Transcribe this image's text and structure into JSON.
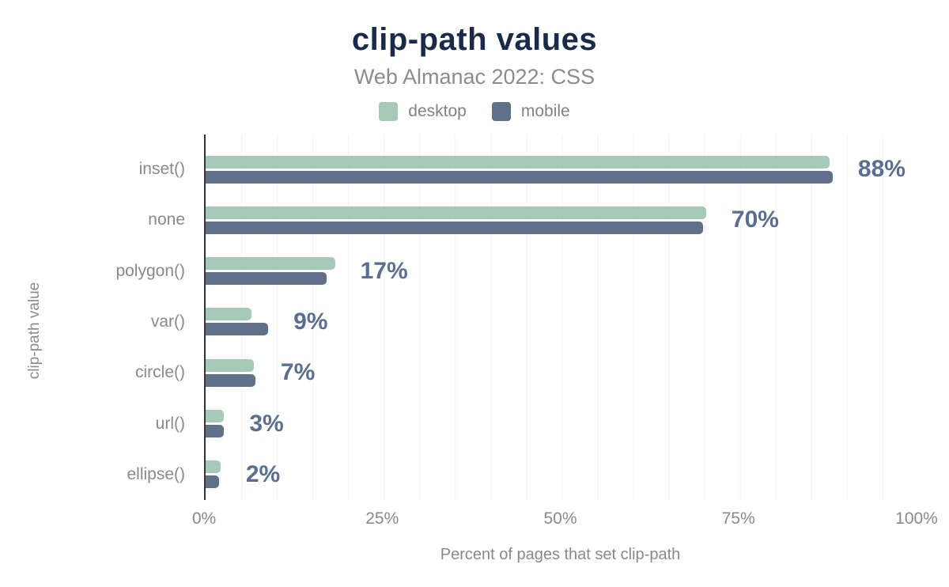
{
  "title": "clip-path values",
  "subtitle": "Web Almanac 2022: CSS",
  "legend": [
    {
      "label": "desktop",
      "color": "#a6c9b8"
    },
    {
      "label": "mobile",
      "color": "#5f7189"
    }
  ],
  "chart_data": {
    "type": "bar",
    "orientation": "horizontal",
    "title": "clip-path values",
    "subtitle": "Web Almanac 2022: CSS",
    "categories": [
      "inset()",
      "none",
      "polygon()",
      "var()",
      "circle()",
      "url()",
      "ellipse()"
    ],
    "series": [
      {
        "name": "desktop",
        "color": "#a6c9b8",
        "values": [
          87.8,
          70.4,
          18.2,
          6.5,
          6.8,
          2.6,
          2.1
        ]
      },
      {
        "name": "mobile",
        "color": "#5f7189",
        "values": [
          88.2,
          70.0,
          17.0,
          8.8,
          7.0,
          2.6,
          1.9
        ]
      }
    ],
    "value_labels": [
      "88%",
      "70%",
      "17%",
      "9%",
      "7%",
      "3%",
      "2%"
    ],
    "xlabel": "Percent of pages that set clip-path",
    "ylabel": "clip-path value",
    "xlim": [
      0,
      100
    ],
    "xticks": {
      "values": [
        0,
        25,
        50,
        75,
        100
      ],
      "labels": [
        "0%",
        "25%",
        "50%",
        "75%",
        "100%"
      ]
    },
    "grid_step_percent": 5,
    "grid": "vertical-minor-lines",
    "legend_position": "top"
  },
  "colors": {
    "background": "#ffffff",
    "title": "#1a2b49",
    "subtitle": "#8c8c8c",
    "legend_text": "#828282",
    "axis_text": "#898989",
    "axis_line": "#33363a",
    "gridline": "#f2f2f2",
    "value_label": "#5b6e8e",
    "desktop": "#a6c9b8",
    "mobile": "#5f7189"
  }
}
